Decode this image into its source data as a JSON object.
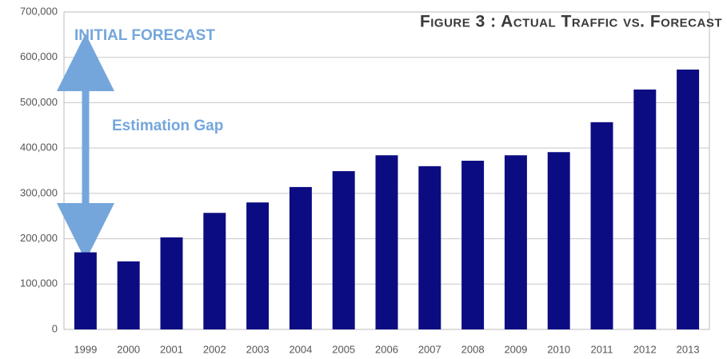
{
  "chart_data": {
    "type": "bar",
    "title": "Figure 3 : Actual Traffic vs. Forecast",
    "annotations": [
      "INITIAL FORECAST",
      "Estimation Gap"
    ],
    "categories": [
      "1999",
      "2000",
      "2001",
      "2002",
      "2003",
      "2004",
      "2005",
      "2006",
      "2007",
      "2008",
      "2009",
      "2010",
      "2011",
      "2012",
      "2013"
    ],
    "values": [
      170000,
      150000,
      203000,
      257000,
      280000,
      314000,
      349000,
      384000,
      360000,
      372000,
      384000,
      391000,
      457000,
      529000,
      573000
    ],
    "color": "#0c0c82",
    "ylim": [
      0,
      700000
    ],
    "yticks": [
      0,
      {
        "value": 100000,
        "label": "100,000"
      },
      {
        "value": 200000,
        "label": "200,000"
      },
      {
        "value": 300000,
        "label": "300,000"
      },
      {
        "value": 400000,
        "label": "400,000"
      },
      {
        "value": 500000,
        "label": "500,000"
      },
      {
        "value": 600000,
        "label": "600,000"
      },
      {
        "value": 700000,
        "label": "700,000"
      }
    ],
    "grid": true
  }
}
